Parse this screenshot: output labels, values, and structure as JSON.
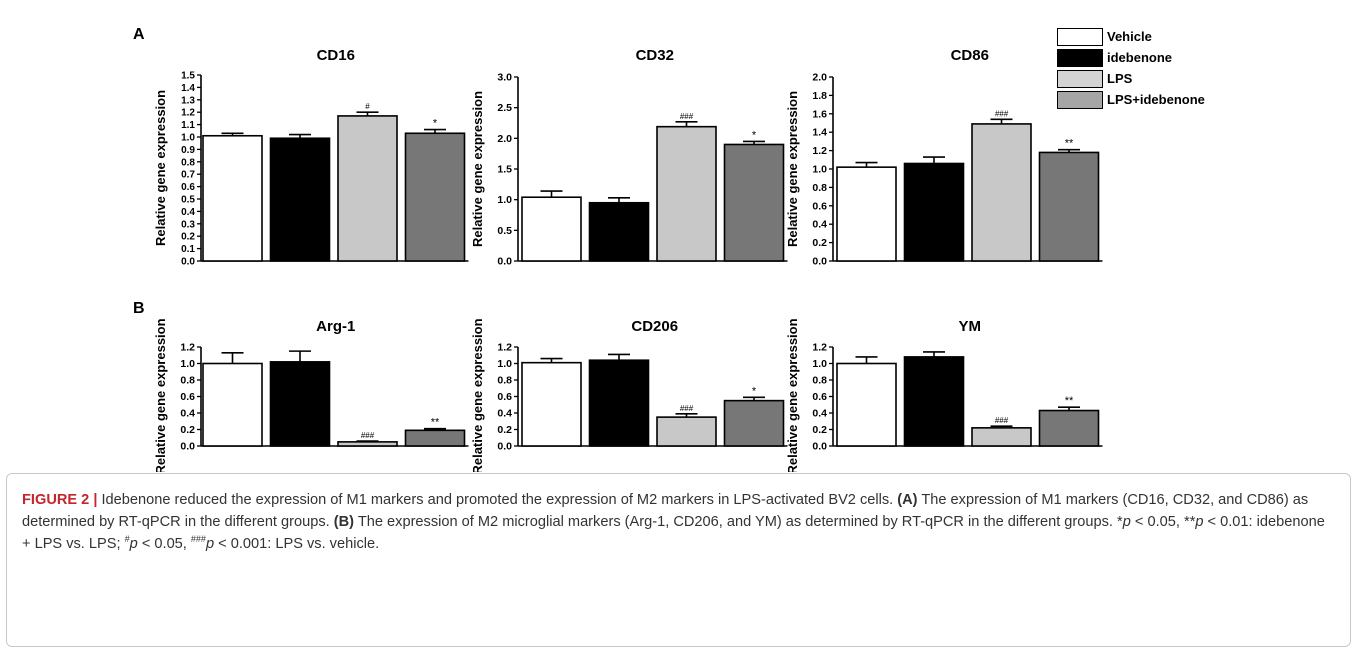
{
  "legend": {
    "items": [
      {
        "label": "Vehicle",
        "color": "#ffffff"
      },
      {
        "label": " idebenone",
        "color": "#000000"
      },
      {
        "label": "LPS",
        "color": "#d4d4d4"
      },
      {
        "label": "LPS+idebenone",
        "color": "#a6a6a6"
      }
    ]
  },
  "panels": {
    "a": "A",
    "b": "B"
  },
  "bar_colors": [
    "#ffffff",
    "#000000",
    "#c8c8c8",
    "#777777"
  ],
  "chart_data": [
    {
      "type": "bar",
      "panel": "A",
      "title": "CD16",
      "ylabel": "Relative gene expression",
      "categories": [
        "Vehicle",
        "idebenone",
        "LPS",
        "LPS+idebenone"
      ],
      "values": [
        1.01,
        0.99,
        1.17,
        1.03
      ],
      "errors": [
        0.02,
        0.03,
        0.03,
        0.03
      ],
      "annotations": [
        "",
        "",
        "#",
        "*"
      ],
      "ylim": [
        0,
        1.5
      ],
      "yticks": [
        "0.0",
        "0.1",
        "0.2",
        "0.3",
        "0.4",
        "0.5",
        "0.6",
        "0.7",
        "0.8",
        "0.9",
        "1.0",
        "1.1",
        "1.2",
        "1.3",
        "1.4",
        "1.5"
      ]
    },
    {
      "type": "bar",
      "panel": "A",
      "title": "CD32",
      "ylabel": "Relative gene expression",
      "categories": [
        "Vehicle",
        "idebenone",
        "LPS",
        "LPS+idebenone"
      ],
      "values": [
        1.04,
        0.95,
        2.19,
        1.9
      ],
      "errors": [
        0.1,
        0.08,
        0.08,
        0.05
      ],
      "annotations": [
        "",
        "",
        "###",
        "*"
      ],
      "ylim": [
        0,
        3.0
      ],
      "yticks": [
        "0.0",
        "0.5",
        "1.0",
        "1.5",
        "2.0",
        "2.5",
        "3.0"
      ]
    },
    {
      "type": "bar",
      "panel": "A",
      "title": "CD86",
      "ylabel": "Relative gene expression",
      "categories": [
        "Vehicle",
        "idebenone",
        "LPS",
        "LPS+idebenone"
      ],
      "values": [
        1.02,
        1.06,
        1.49,
        1.18
      ],
      "errors": [
        0.05,
        0.07,
        0.05,
        0.03
      ],
      "annotations": [
        "",
        "",
        "###",
        "**"
      ],
      "ylim": [
        0,
        2.0
      ],
      "yticks": [
        "0.0",
        "0.2",
        "0.4",
        "0.6",
        "0.8",
        "1.0",
        "1.2",
        "1.4",
        "1.6",
        "1.8",
        "2.0"
      ]
    },
    {
      "type": "bar",
      "panel": "B",
      "title": "Arg-1",
      "ylabel": "Relative gene expression",
      "categories": [
        "Vehicle",
        "idebenone",
        "LPS",
        "LPS+idebenone"
      ],
      "values": [
        1.0,
        1.02,
        0.05,
        0.19
      ],
      "errors": [
        0.13,
        0.13,
        0.01,
        0.02
      ],
      "annotations": [
        "",
        "",
        "###",
        "**"
      ],
      "ylim": [
        0,
        1.2
      ],
      "yticks": [
        "0.0",
        "0.2",
        "0.4",
        "0.6",
        "0.8",
        "1.0",
        "1.2"
      ]
    },
    {
      "type": "bar",
      "panel": "B",
      "title": "CD206",
      "ylabel": "Relative gene expression",
      "categories": [
        "Vehicle",
        "idebenone",
        "LPS",
        "LPS+idebenone"
      ],
      "values": [
        1.01,
        1.04,
        0.35,
        0.55
      ],
      "errors": [
        0.05,
        0.07,
        0.04,
        0.04
      ],
      "annotations": [
        "",
        "",
        "###",
        "*"
      ],
      "ylim": [
        0,
        1.2
      ],
      "yticks": [
        "0.0",
        "0.2",
        "0.4",
        "0.6",
        "0.8",
        "1.0",
        "1.2"
      ]
    },
    {
      "type": "bar",
      "panel": "B",
      "title": "YM",
      "ylabel": "Relative gene expression",
      "categories": [
        "Vehicle",
        "idebenone",
        "LPS",
        "LPS+idebenone"
      ],
      "values": [
        1.0,
        1.08,
        0.22,
        0.43
      ],
      "errors": [
        0.08,
        0.06,
        0.02,
        0.04
      ],
      "annotations": [
        "",
        "",
        "###",
        "**"
      ],
      "ylim": [
        0,
        1.2
      ],
      "yticks": [
        "0.0",
        "0.2",
        "0.4",
        "0.6",
        "0.8",
        "1.0",
        "1.2"
      ]
    }
  ],
  "caption": {
    "figure_label": "FIGURE 2 |",
    "lead": " Idebenone reduced the expression of M1 markers and promoted the expression of M2 markers in LPS-activated BV2 cells. ",
    "a_label": "(A)",
    "a_text": " The expression of M1 markers (CD16, CD32, and CD86) as determined by RT-qPCR in the different groups. ",
    "b_label": "(B)",
    "b_text": " The expression of M2 microglial markers (Arg-1, CD206, and YM) as determined by RT-qPCR in the different groups. ",
    "star1": "*",
    "p1": "p",
    "t1": " < 0.05, ",
    "star2": "**",
    "p2": "p",
    "t2": " < 0.01: idebenone + LPS vs. LPS; ",
    "hash1": "#",
    "p3": "p",
    "t3": " < 0.05, ",
    "hash3": "###",
    "p4": "p",
    "t4": " < 0.001: LPS vs. vehicle."
  }
}
